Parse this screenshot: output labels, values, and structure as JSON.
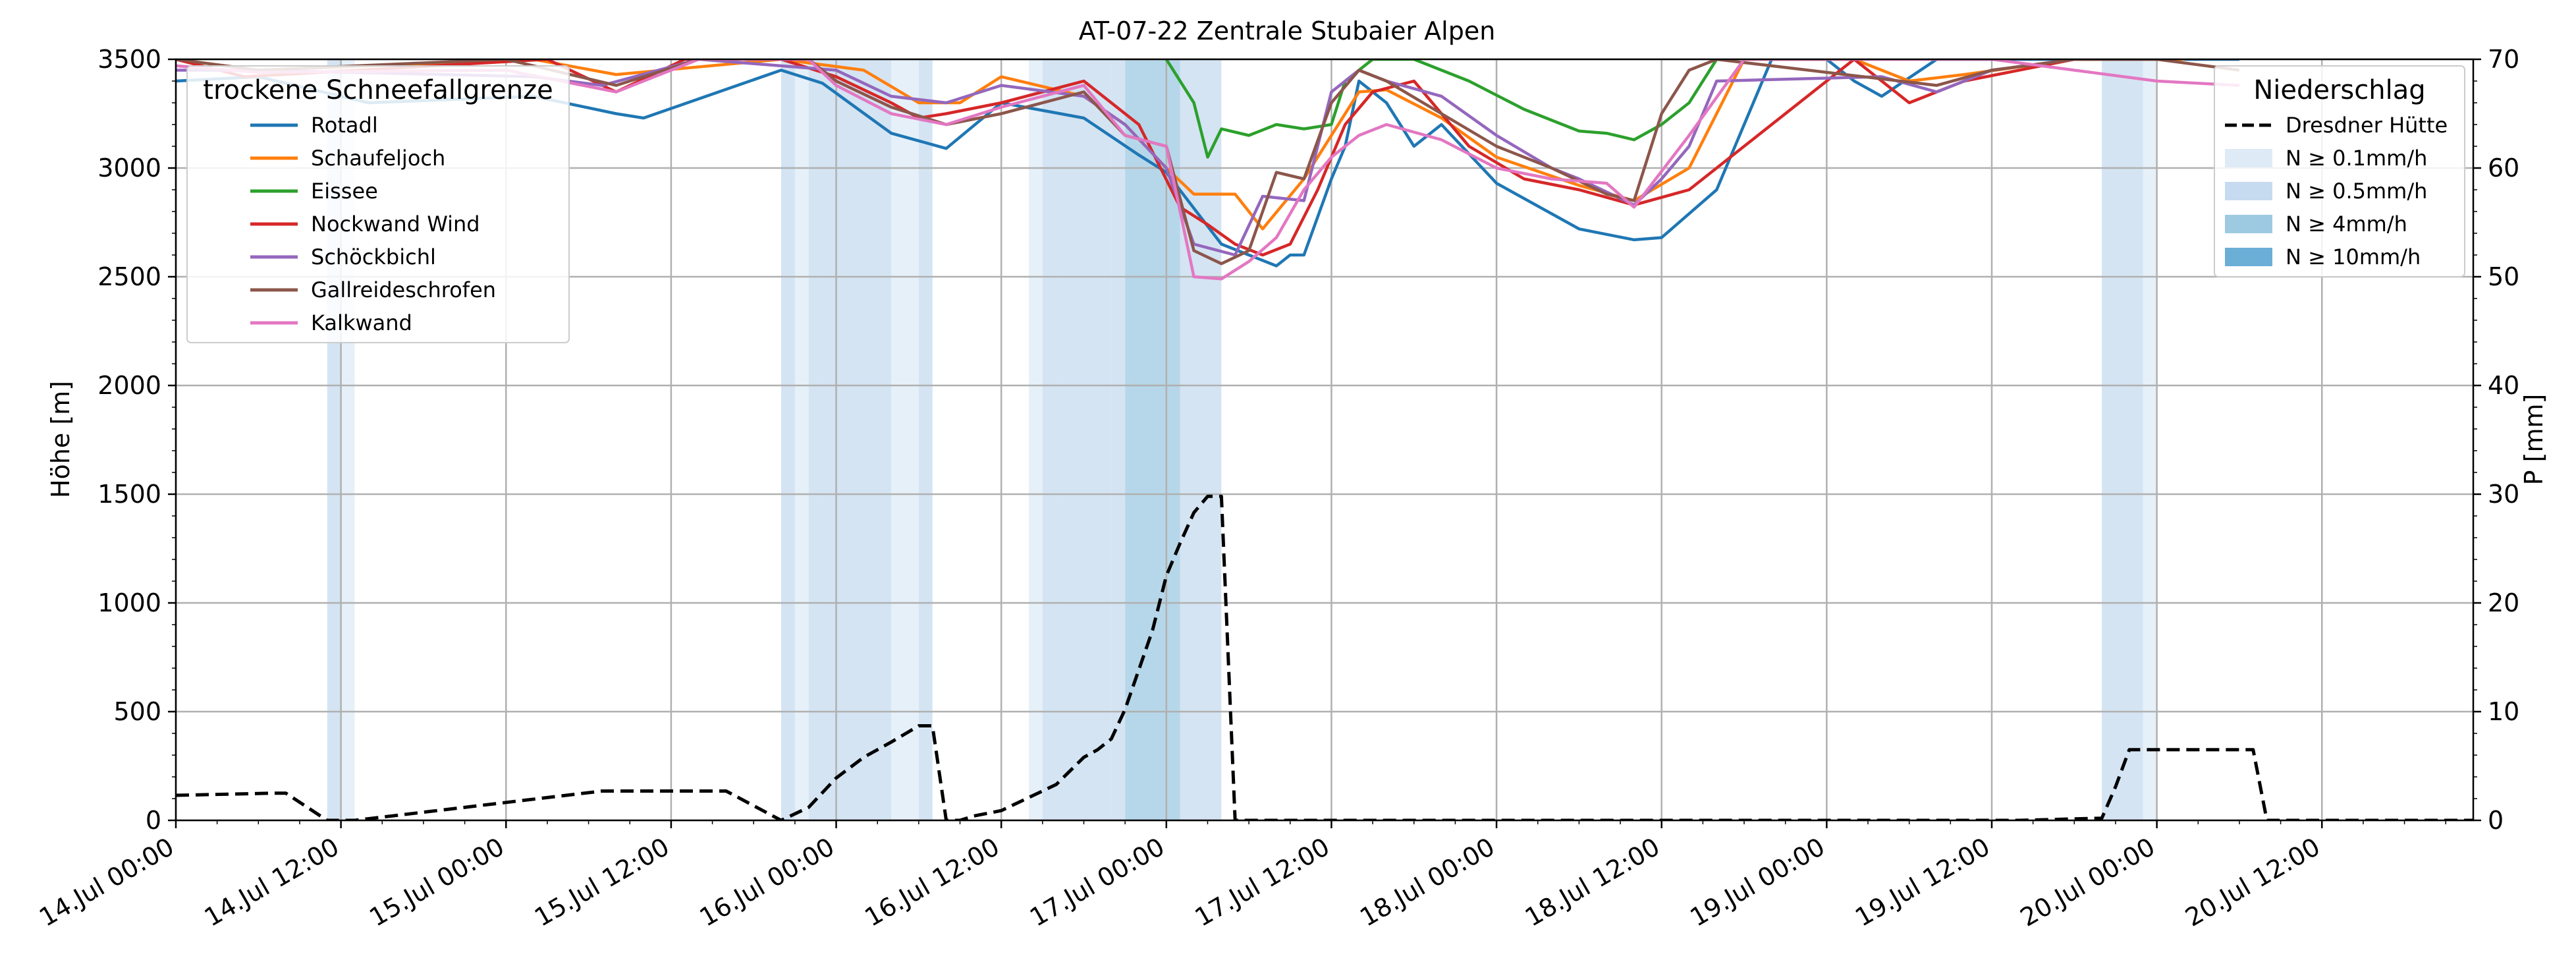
{
  "chart_data": {
    "type": "line",
    "title": "AT-07-22 Zentrale Stubaier Alpen",
    "ylabel": "Höhe [m]",
    "y2label": "P [mm]",
    "xlim": [
      "14 Jul 00:00",
      "20 Jul 23:00"
    ],
    "ylim": [
      0,
      3500
    ],
    "y2lim": [
      0,
      70
    ],
    "grid": true,
    "x_ticks": [
      "14.Jul 00:00",
      "14.Jul 12:00",
      "15.Jul 00:00",
      "15.Jul 12:00",
      "16.Jul 00:00",
      "16.Jul 12:00",
      "17.Jul 00:00",
      "17.Jul 12:00",
      "18.Jul 00:00",
      "18.Jul 12:00",
      "19.Jul 00:00",
      "19.Jul 12:00",
      "20.Jul 00:00",
      "20.Jul 12:00"
    ],
    "y_ticks": [
      "0",
      "500",
      "1000",
      "1500",
      "2000",
      "2500",
      "3000",
      "3500"
    ],
    "y2_ticks": [
      "0",
      "10",
      "20",
      "30",
      "40",
      "50",
      "60",
      "70"
    ],
    "legend_left": {
      "title": "trockene Schneefallgrenze",
      "position": "top-left"
    },
    "legend_right": {
      "title": "Niederschlag",
      "position": "top-right",
      "line_label": "Dresdner Hütte",
      "band_labels": [
        "N ≥ 0.1mm/h",
        "N ≥ 0.5mm/h",
        "N ≥ 4mm/h",
        "N ≥ 10mm/h"
      ]
    },
    "precip_band_colors": [
      "#deebf7",
      "#c6dbef",
      "#9ecae1",
      "#6baed6"
    ],
    "precip_bands": [
      {
        "start": "14 Jul 11:00",
        "end": "14 Jul 12:00",
        "level": 1
      },
      {
        "start": "14 Jul 12:00",
        "end": "14 Jul 13:00",
        "level": 0
      },
      {
        "start": "15 Jul 20:00",
        "end": "15 Jul 21:00",
        "level": 1
      },
      {
        "start": "15 Jul 21:00",
        "end": "15 Jul 22:00",
        "level": 0
      },
      {
        "start": "15 Jul 22:00",
        "end": "15 Jul 23:00",
        "level": 1
      },
      {
        "start": "15 Jul 23:00",
        "end": "16 Jul 04:00",
        "level": 1
      },
      {
        "start": "16 Jul 04:00",
        "end": "16 Jul 06:00",
        "level": 0
      },
      {
        "start": "16 Jul 06:00",
        "end": "16 Jul 07:00",
        "level": 1
      },
      {
        "start": "16 Jul 14:00",
        "end": "16 Jul 15:00",
        "level": 0
      },
      {
        "start": "16 Jul 15:00",
        "end": "16 Jul 16:00",
        "level": 1
      },
      {
        "start": "16 Jul 16:00",
        "end": "16 Jul 20:00",
        "level": 1
      },
      {
        "start": "16 Jul 20:00",
        "end": "16 Jul 21:00",
        "level": 1
      },
      {
        "start": "16 Jul 21:00",
        "end": "17 Jul 01:00",
        "level": 2
      },
      {
        "start": "17 Jul 01:00",
        "end": "17 Jul 04:00",
        "level": 1
      },
      {
        "start": "19 Jul 20:00",
        "end": "19 Jul 23:00",
        "level": 1
      },
      {
        "start": "19 Jul 23:00",
        "end": "20 Jul 00:00",
        "level": 0
      }
    ],
    "precip_line": {
      "name": "Dresdner Hütte",
      "x": [
        "14 Jul 00:00",
        "14 Jul 07:00",
        "14 Jul 08:00",
        "14 Jul 11:00",
        "14 Jul 13:00",
        "15 Jul 07:00",
        "15 Jul 08:00",
        "15 Jul 16:00",
        "15 Jul 20:00",
        "15 Jul 22:00",
        "16 Jul 00:00",
        "16 Jul 02:00",
        "16 Jul 04:00",
        "16 Jul 06:00",
        "16 Jul 07:00",
        "16 Jul 08:00",
        "16 Jul 09:00",
        "16 Jul 10:00",
        "16 Jul 12:00",
        "16 Jul 16:00",
        "16 Jul 18:00",
        "16 Jul 19:00",
        "16 Jul 20:00",
        "16 Jul 21:00",
        "16 Jul 23:00",
        "17 Jul 00:00",
        "17 Jul 01:00",
        "17 Jul 02:00",
        "17 Jul 03:00",
        "17 Jul 04:00",
        "17 Jul 05:00",
        "17 Jul 06:00",
        "17 Jul 07:00",
        "17 Jul 08:00",
        "17 Jul 09:00",
        "19 Jul 14:00",
        "19 Jul 20:00",
        "19 Jul 21:00",
        "19 Jul 22:00",
        "20 Jul 00:00",
        "20 Jul 07:00",
        "20 Jul 08:00",
        "20 Jul 23:00"
      ],
      "y": [
        2.3,
        2.5,
        2.5,
        0,
        0,
        2.7,
        2.7,
        2.7,
        0,
        1.2,
        3.9,
        5.8,
        7.2,
        8.7,
        8.7,
        0,
        0,
        0.4,
        0.9,
        3.3,
        5.8,
        6.5,
        7.5,
        10.2,
        17.5,
        22.5,
        25.5,
        28.3,
        29.8,
        29.8,
        0,
        0,
        0,
        0,
        0,
        0,
        0.2,
        3.1,
        6.5,
        6.5,
        6.5,
        0,
        0
      ]
    },
    "series": [
      {
        "name": "Rotadl",
        "color": "#1f77b4",
        "x": [
          "14 Jul 00:00",
          "14 Jul 06:00",
          "14 Jul 14:00",
          "15 Jul 02:00",
          "15 Jul 08:00",
          "15 Jul 10:00",
          "15 Jul 20:00",
          "15 Jul 23:00",
          "16 Jul 04:00",
          "16 Jul 08:00",
          "16 Jul 12:00",
          "16 Jul 18:00",
          "16 Jul 22:00",
          "17 Jul 00:00",
          "17 Jul 04:00",
          "17 Jul 06:00",
          "17 Jul 08:00",
          "17 Jul 09:00",
          "17 Jul 10:00",
          "17 Jul 12:00",
          "17 Jul 13:00",
          "17 Jul 14:00",
          "17 Jul 16:00",
          "17 Jul 18:00",
          "17 Jul 20:00",
          "18 Jul 00:00",
          "18 Jul 06:00",
          "18 Jul 10:00",
          "18 Jul 12:00",
          "18 Jul 16:00",
          "18 Jul 20:00",
          "19 Jul 00:00",
          "19 Jul 02:00",
          "19 Jul 04:00",
          "19 Jul 08:00",
          "19 Jul 12:00",
          "19 Jul 16:00",
          "20 Jul 00:00",
          "20 Jul 06:00"
        ],
        "y": [
          3400,
          3420,
          3300,
          3330,
          3250,
          3230,
          3450,
          3390,
          3160,
          3090,
          3300,
          3230,
          3060,
          2980,
          2650,
          2600,
          2550,
          2600,
          2600,
          2950,
          3100,
          3400,
          3300,
          3100,
          3200,
          2930,
          2720,
          2670,
          2680,
          2900,
          3500,
          3500,
          3400,
          3330,
          3500,
          3500,
          3500,
          3500,
          3500
        ]
      },
      {
        "name": "Schaufeljoch",
        "color": "#ff7f0e",
        "x": [
          "14 Jul 00:00",
          "14 Jul 06:00",
          "15 Jul 02:00",
          "15 Jul 08:00",
          "15 Jul 20:00",
          "16 Jul 02:00",
          "16 Jul 06:00",
          "16 Jul 09:00",
          "16 Jul 12:00",
          "16 Jul 18:00",
          "16 Jul 21:00",
          "17 Jul 00:00",
          "17 Jul 02:00",
          "17 Jul 05:00",
          "17 Jul 07:00",
          "17 Jul 10:00",
          "17 Jul 12:00",
          "17 Jul 14:00",
          "17 Jul 16:00",
          "17 Jul 20:00",
          "18 Jul 00:00",
          "18 Jul 06:00",
          "18 Jul 10:00",
          "18 Jul 14:00",
          "18 Jul 18:00",
          "19 Jul 02:00",
          "19 Jul 06:00",
          "19 Jul 10:00",
          "19 Jul 18:00",
          "20 Jul 02:00"
        ],
        "y": [
          3500,
          3450,
          3500,
          3430,
          3500,
          3450,
          3300,
          3300,
          3420,
          3330,
          3200,
          3000,
          2880,
          2880,
          2720,
          2950,
          3150,
          3350,
          3360,
          3230,
          3050,
          2920,
          2850,
          3000,
          3500,
          3500,
          3400,
          3430,
          3500,
          3500
        ]
      },
      {
        "name": "Eissee",
        "color": "#2ca02c",
        "x": [
          "17 Jul 00:00",
          "17 Jul 02:00",
          "17 Jul 03:00",
          "17 Jul 04:00",
          "17 Jul 06:00",
          "17 Jul 08:00",
          "17 Jul 10:00",
          "17 Jul 12:00",
          "17 Jul 13:00",
          "17 Jul 15:00",
          "17 Jul 18:00",
          "17 Jul 22:00",
          "18 Jul 02:00",
          "18 Jul 04:00",
          "18 Jul 06:00",
          "18 Jul 08:00",
          "18 Jul 10:00",
          "18 Jul 12:00",
          "18 Jul 14:00",
          "18 Jul 16:00"
        ],
        "y": [
          3500,
          3300,
          3050,
          3180,
          3150,
          3200,
          3180,
          3200,
          3400,
          3500,
          3500,
          3400,
          3270,
          3220,
          3170,
          3160,
          3130,
          3200,
          3300,
          3500
        ]
      },
      {
        "name": "Nockwand Wind",
        "color": "#d62728",
        "x": [
          "14 Jul 00:00",
          "14 Jul 05:00",
          "15 Jul 03:00",
          "15 Jul 08:00",
          "15 Jul 13:00",
          "15 Jul 20:00",
          "16 Jul 00:00",
          "16 Jul 04:00",
          "16 Jul 06:00",
          "16 Jul 08:00",
          "16 Jul 12:00",
          "16 Jul 18:00",
          "16 Jul 22:00",
          "17 Jul 01:00",
          "17 Jul 03:00",
          "17 Jul 05:00",
          "17 Jul 07:00",
          "17 Jul 09:00",
          "17 Jul 11:00",
          "17 Jul 13:00",
          "17 Jul 15:00",
          "17 Jul 18:00",
          "17 Jul 22:00",
          "18 Jul 02:00",
          "18 Jul 06:00",
          "18 Jul 10:00",
          "18 Jul 14:00",
          "18 Jul 18:00",
          "19 Jul 02:00",
          "19 Jul 06:00",
          "19 Jul 08:00",
          "19 Jul 10:00",
          "19 Jul 18:00"
        ],
        "y": [
          3500,
          3420,
          3500,
          3350,
          3500,
          3500,
          3420,
          3300,
          3230,
          3250,
          3300,
          3400,
          3200,
          2820,
          2740,
          2650,
          2600,
          2650,
          2900,
          3200,
          3350,
          3400,
          3100,
          2950,
          2900,
          2830,
          2900,
          3100,
          3500,
          3300,
          3350,
          3400,
          3500
        ]
      },
      {
        "name": "Schöckbichl",
        "color": "#9467bd",
        "x": [
          "14 Jul 00:00",
          "14 Jul 06:00",
          "15 Jul 02:00",
          "15 Jul 07:00",
          "15 Jul 14:00",
          "16 Jul 00:00",
          "16 Jul 04:00",
          "16 Jul 08:00",
          "16 Jul 12:00",
          "16 Jul 18:00",
          "16 Jul 21:00",
          "17 Jul 00:00",
          "17 Jul 02:00",
          "17 Jul 05:00",
          "17 Jul 07:00",
          "17 Jul 10:00",
          "17 Jul 12:00",
          "17 Jul 14:00",
          "17 Jul 16:00",
          "17 Jul 20:00",
          "18 Jul 00:00",
          "18 Jul 04:00",
          "18 Jul 06:00",
          "18 Jul 10:00",
          "18 Jul 12:00",
          "18 Jul 14:00",
          "18 Jul 16:00",
          "19 Jul 04:00",
          "19 Jul 08:00",
          "19 Jul 12:00",
          "19 Jul 18:00"
        ],
        "y": [
          3450,
          3450,
          3420,
          3380,
          3500,
          3450,
          3330,
          3300,
          3380,
          3330,
          3200,
          3000,
          2650,
          2600,
          2870,
          2850,
          3350,
          3450,
          3400,
          3330,
          3150,
          3000,
          2950,
          2830,
          2950,
          3100,
          3400,
          3420,
          3350,
          3450,
          3500
        ]
      },
      {
        "name": "Gallreideschrofen",
        "color": "#8c564b",
        "x": [
          "14 Jul 00:00",
          "14 Jul 06:00",
          "15 Jul 00:00",
          "15 Jul 08:00",
          "15 Jul 14:00",
          "15 Jul 22:00",
          "16 Jul 00:00",
          "16 Jul 04:00",
          "16 Jul 08:00",
          "16 Jul 12:00",
          "16 Jul 18:00",
          "16 Jul 21:00",
          "17 Jul 00:00",
          "17 Jul 02:00",
          "17 Jul 04:00",
          "17 Jul 06:00",
          "17 Jul 08:00",
          "17 Jul 10:00",
          "17 Jul 12:00",
          "17 Jul 14:00",
          "17 Jul 16:00",
          "17 Jul 20:00",
          "18 Jul 00:00",
          "18 Jul 04:00",
          "18 Jul 08:00",
          "18 Jul 10:00",
          "18 Jul 12:00",
          "18 Jul 14:00",
          "18 Jul 16:00",
          "19 Jul 08:00",
          "19 Jul 12:00",
          "19 Jul 18:00",
          "20 Jul 00:00",
          "20 Jul 06:00"
        ],
        "y": [
          3500,
          3450,
          3500,
          3380,
          3500,
          3500,
          3400,
          3280,
          3200,
          3250,
          3350,
          3150,
          3100,
          2620,
          2560,
          2620,
          2980,
          2950,
          3300,
          3450,
          3400,
          3250,
          3100,
          3000,
          2880,
          2850,
          3250,
          3450,
          3500,
          3380,
          3450,
          3500,
          3500,
          3450
        ]
      },
      {
        "name": "Kalkwand",
        "color": "#e377c2",
        "x": [
          "14 Jul 00:00",
          "14 Jul 06:00",
          "15 Jul 00:00",
          "15 Jul 08:00",
          "15 Jul 14:00",
          "15 Jul 22:00",
          "16 Jul 00:00",
          "16 Jul 04:00",
          "16 Jul 08:00",
          "16 Jul 12:00",
          "16 Jul 18:00",
          "16 Jul 21:00",
          "17 Jul 00:00",
          "17 Jul 02:00",
          "17 Jul 04:00",
          "17 Jul 06:00",
          "17 Jul 08:00",
          "17 Jul 10:00",
          "17 Jul 12:00",
          "17 Jul 14:00",
          "17 Jul 16:00",
          "17 Jul 20:00",
          "18 Jul 00:00",
          "18 Jul 04:00",
          "18 Jul 08:00",
          "18 Jul 10:00",
          "18 Jul 14:00",
          "18 Jul 18:00",
          "19 Jul 12:00",
          "19 Jul 18:00",
          "20 Jul 00:00",
          "20 Jul 06:00"
        ],
        "y": [
          3470,
          3440,
          3450,
          3350,
          3500,
          3500,
          3380,
          3250,
          3200,
          3280,
          3380,
          3150,
          3100,
          2500,
          2490,
          2570,
          2680,
          2900,
          3050,
          3150,
          3200,
          3130,
          3000,
          2950,
          2930,
          2820,
          3150,
          3500,
          3500,
          3450,
          3400,
          3380
        ]
      }
    ]
  }
}
